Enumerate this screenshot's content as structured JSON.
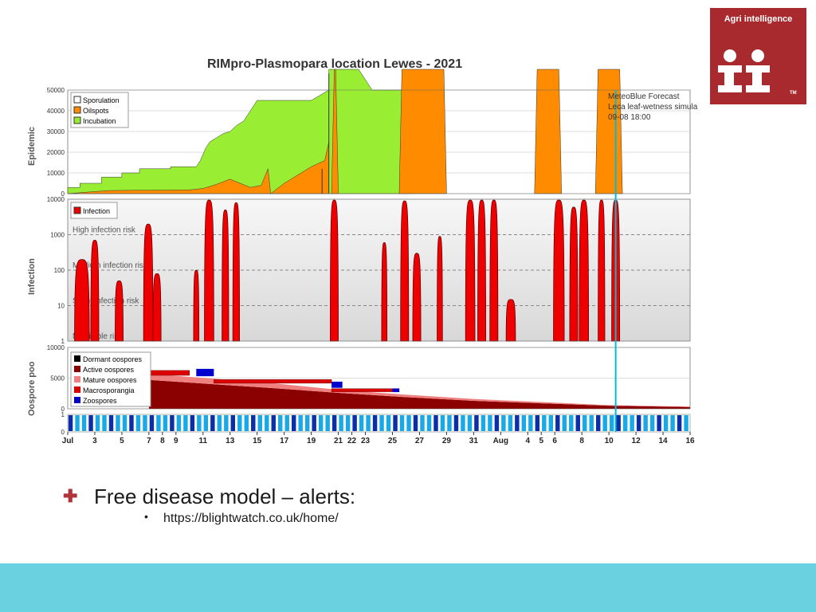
{
  "logo": {
    "name": "Agri intelligence",
    "tm": "TM"
  },
  "bullets": {
    "main": "Free disease model – alerts:",
    "sub": "https://blightwatch.co.uk/home/"
  },
  "colors": {
    "sporulation": "#ffffff",
    "oilspots": "#ff8c00",
    "incubation": "#99ee33",
    "infection": "#ee0000",
    "dormant": "#000000",
    "active": "#8b0000",
    "mature": "#f08080",
    "macrosporangia": "#dd0000",
    "zoospores": "#0000cc",
    "forecast_line": "#00bcd4",
    "threshold": "#888888",
    "brand": "#a82a2e",
    "footer": "#69d1e0"
  },
  "chart_data": {
    "type": "area",
    "title": "RIMpro-Plasmopara location  Lewes - 2021",
    "forecast": {
      "lines": [
        "MeteoBlue Forecast",
        "Leca leaf-wetness simula",
        "09-08 18:00"
      ],
      "x": 40.5
    },
    "x_axis": {
      "domain": [
        0,
        46
      ],
      "ticks": [
        {
          "x": 0,
          "label": "Jul"
        },
        {
          "x": 2,
          "label": "3"
        },
        {
          "x": 4,
          "label": "5"
        },
        {
          "x": 6,
          "label": "7"
        },
        {
          "x": 7,
          "label": "8"
        },
        {
          "x": 8,
          "label": "9"
        },
        {
          "x": 10,
          "label": "11"
        },
        {
          "x": 12,
          "label": "13"
        },
        {
          "x": 14,
          "label": "15"
        },
        {
          "x": 16,
          "label": "17"
        },
        {
          "x": 18,
          "label": "19"
        },
        {
          "x": 20,
          "label": "21"
        },
        {
          "x": 21,
          "label": "22"
        },
        {
          "x": 22,
          "label": "23"
        },
        {
          "x": 24,
          "label": "25"
        },
        {
          "x": 26,
          "label": "27"
        },
        {
          "x": 28,
          "label": "29"
        },
        {
          "x": 30,
          "label": "31"
        },
        {
          "x": 32,
          "label": "Aug"
        },
        {
          "x": 34,
          "label": "4"
        },
        {
          "x": 35,
          "label": "5"
        },
        {
          "x": 36,
          "label": "6"
        },
        {
          "x": 38,
          "label": "8"
        },
        {
          "x": 40,
          "label": "10"
        },
        {
          "x": 42,
          "label": "12"
        },
        {
          "x": 44,
          "label": "14"
        },
        {
          "x": 46,
          "label": "16"
        }
      ]
    },
    "epidemic": {
      "ylabel": "Epidemic",
      "ylim": [
        0,
        50000
      ],
      "yticks": [
        "0",
        "10000",
        "20000",
        "30000",
        "40000",
        "50000"
      ],
      "legend": [
        "Sporulation",
        "Oilspots",
        "Incubation"
      ],
      "incubation": [
        [
          0,
          3000
        ],
        [
          0.9,
          3000
        ],
        [
          0.9,
          5000
        ],
        [
          2.5,
          5000
        ],
        [
          2.5,
          8000
        ],
        [
          4,
          8000
        ],
        [
          4,
          10000
        ],
        [
          5.3,
          10000
        ],
        [
          5.3,
          12000
        ],
        [
          7.6,
          12000
        ],
        [
          7.6,
          13000
        ],
        [
          9.5,
          13000
        ],
        [
          9.8,
          16000
        ],
        [
          10.2,
          22000
        ],
        [
          10.5,
          25000
        ],
        [
          11,
          27000
        ],
        [
          11.5,
          29000
        ],
        [
          12,
          30000
        ],
        [
          12.5,
          33000
        ],
        [
          13,
          35000
        ],
        [
          13.5,
          40000
        ],
        [
          14,
          45000
        ],
        [
          18,
          45000
        ],
        [
          19.3,
          50000
        ],
        [
          19.3,
          60000
        ],
        [
          21.5,
          60000
        ],
        [
          22.5,
          50000
        ],
        [
          24.5,
          50000
        ],
        [
          25.5,
          50000
        ],
        [
          25.5,
          0
        ],
        [
          0,
          0
        ]
      ],
      "oilspots": [
        [
          0,
          0
        ],
        [
          1,
          500
        ],
        [
          3,
          1500
        ],
        [
          5,
          1600
        ],
        [
          7,
          1700
        ],
        [
          9,
          1800
        ],
        [
          10,
          2500
        ],
        [
          11,
          4500
        ],
        [
          12,
          7000
        ],
        [
          13.5,
          3000
        ],
        [
          14.3,
          4000
        ],
        [
          14.8,
          12000
        ],
        [
          15,
          0
        ],
        [
          16,
          5000
        ],
        [
          18,
          13000
        ],
        [
          19,
          16000
        ],
        [
          19.3,
          25000
        ],
        [
          19.3,
          0
        ]
      ],
      "oilspots_blocks": [
        [
          19.5,
          20
        ],
        [
          24.5,
          28
        ],
        [
          34.5,
          36.5
        ],
        [
          39,
          41
        ]
      ],
      "sporulation_spikes": [
        [
          18.8,
          12000
        ],
        [
          19.3,
          58000
        ]
      ]
    },
    "infection": {
      "ylabel": "Infection",
      "ylim": [
        1,
        10000
      ],
      "scale": "log",
      "yticks": [
        "1",
        "10",
        "100",
        "1000",
        "10000"
      ],
      "legend": [
        "Infection"
      ],
      "thresholds": [
        {
          "value": 1000,
          "label": "High infection risk"
        },
        {
          "value": 100,
          "label": "Medium infection risk"
        },
        {
          "value": 10,
          "label": "Slight infection risk"
        },
        {
          "value": 1,
          "label": "Negligible risk"
        }
      ],
      "events": [
        [
          0.5,
          1.6,
          200
        ],
        [
          1.7,
          2.3,
          700
        ],
        [
          3.5,
          4.1,
          50
        ],
        [
          5.6,
          6.3,
          2000
        ],
        [
          6.3,
          6.9,
          80
        ],
        [
          9.3,
          9.7,
          100
        ],
        [
          10.1,
          10.8,
          10000
        ],
        [
          11.4,
          11.9,
          5000
        ],
        [
          12.2,
          12.7,
          8000
        ],
        [
          19.4,
          20,
          10000
        ],
        [
          23.2,
          23.6,
          600
        ],
        [
          24.6,
          25.2,
          9000
        ],
        [
          25.5,
          26.1,
          300
        ],
        [
          27.3,
          27.7,
          900
        ],
        [
          29.4,
          30.1,
          10000
        ],
        [
          30.3,
          30.9,
          10000
        ],
        [
          31.2,
          31.8,
          10000
        ],
        [
          32.4,
          33.1,
          15
        ],
        [
          35.9,
          36.7,
          10000
        ],
        [
          37.1,
          37.7,
          6000
        ],
        [
          37.8,
          38.5,
          12000
        ],
        [
          39.2,
          39.7,
          10000
        ],
        [
          40.2,
          40.8,
          10000
        ]
      ]
    },
    "oospore": {
      "ylabel": "Oospore poo",
      "ylim": [
        0,
        10000
      ],
      "yticks": [
        "0",
        "5000",
        "10000"
      ],
      "legend": [
        "Dormant oospores",
        "Active oospores",
        "Mature oospores",
        "Macrosporangia",
        "Zoospores"
      ],
      "active": [
        [
          6,
          4700
        ],
        [
          15,
          3400
        ],
        [
          20,
          2600
        ],
        [
          25,
          1900
        ],
        [
          30,
          1300
        ],
        [
          35,
          900
        ],
        [
          40,
          500
        ],
        [
          46,
          300
        ]
      ],
      "mature": [
        [
          6,
          1000
        ],
        [
          15,
          800
        ],
        [
          20,
          500
        ],
        [
          25,
          400
        ],
        [
          30,
          300
        ],
        [
          35,
          200
        ],
        [
          40,
          100
        ],
        [
          46,
          50
        ]
      ],
      "macrosporangia": [
        [
          6,
          9,
          800
        ],
        [
          10.8,
          19.5,
          600
        ],
        [
          19.5,
          24.5,
          500
        ]
      ],
      "zoospores": [
        [
          9.5,
          10.8,
          1200
        ],
        [
          19.5,
          20.3,
          1000
        ],
        [
          24,
          24.5,
          600
        ]
      ]
    },
    "rain": {
      "ylim": [
        0,
        1
      ],
      "yticks": [
        "0",
        "1"
      ]
    }
  }
}
